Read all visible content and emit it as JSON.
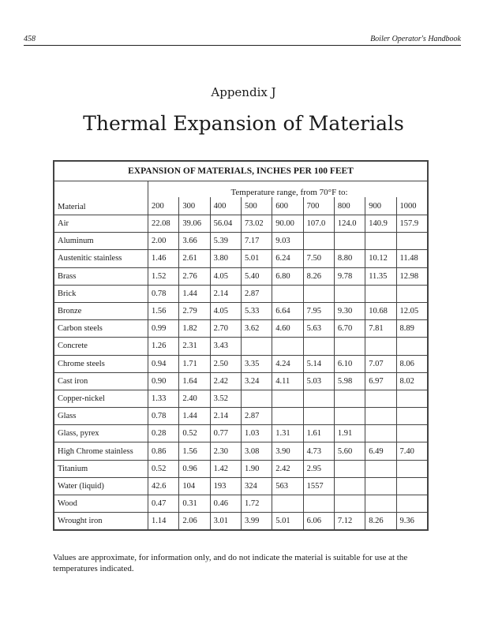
{
  "running_header": {
    "page_number": "458",
    "book_title": "Boiler Operator's Handbook"
  },
  "appendix": "Appendix J",
  "title": "Thermal Expansion of Materials",
  "table": {
    "caption": "EXPANSION OF MATERIALS, INCHES PER 100 FEET",
    "range_label": "Temperature range, from 70°F to:",
    "material_header": "Material",
    "temperatures": [
      "200",
      "300",
      "400",
      "500",
      "600",
      "700",
      "800",
      "900",
      "1000"
    ],
    "rows": [
      {
        "material": "Air",
        "values": [
          "22.08",
          "39.06",
          "56.04",
          "73.02",
          "90.00",
          "107.0",
          "124.0",
          "140.9",
          "157.9"
        ]
      },
      {
        "material": "Aluminum",
        "values": [
          "2.00",
          "3.66",
          "5.39",
          "7.17",
          "9.03",
          "",
          "",
          "",
          ""
        ]
      },
      {
        "material": "Austenitic stainless",
        "values": [
          "1.46",
          "2.61",
          "3.80",
          "5.01",
          "6.24",
          "7.50",
          "8.80",
          "10.12",
          "11.48"
        ]
      },
      {
        "material": "Brass",
        "values": [
          "1.52",
          "2.76",
          "4.05",
          "5.40",
          "6.80",
          "8.26",
          "9.78",
          "11.35",
          "12.98"
        ]
      },
      {
        "material": "Brick",
        "values": [
          "0.78",
          "1.44",
          "2.14",
          "2.87",
          "",
          "",
          "",
          "",
          ""
        ]
      },
      {
        "material": "Bronze",
        "values": [
          "1.56",
          "2.79",
          "4.05",
          "5.33",
          "6.64",
          "7.95",
          "9.30",
          "10.68",
          "12.05"
        ]
      },
      {
        "material": "Carbon steels",
        "values": [
          "0.99",
          "1.82",
          "2.70",
          "3.62",
          "4.60",
          "5.63",
          "6.70",
          "7.81",
          "8.89"
        ]
      },
      {
        "material": "Concrete",
        "values": [
          "1.26",
          "2.31",
          "3.43",
          "",
          "",
          "",
          "",
          "",
          ""
        ]
      },
      {
        "material": "Chrome steels",
        "values": [
          "0.94",
          "1.71",
          "2.50",
          "3.35",
          "4.24",
          "5.14",
          "6.10",
          "7.07",
          "8.06"
        ]
      },
      {
        "material": "Cast iron",
        "values": [
          "0.90",
          "1.64",
          "2.42",
          "3.24",
          "4.11",
          "5.03",
          "5.98",
          "6.97",
          "8.02"
        ]
      },
      {
        "material": "Copper-nickel",
        "values": [
          "1.33",
          "2.40",
          "3.52",
          "",
          "",
          "",
          "",
          "",
          ""
        ]
      },
      {
        "material": "Glass",
        "values": [
          "0.78",
          "1.44",
          "2.14",
          "2.87",
          "",
          "",
          "",
          "",
          ""
        ]
      },
      {
        "material": "Glass, pyrex",
        "values": [
          "0.28",
          "0.52",
          "0.77",
          "1.03",
          "1.31",
          "1.61",
          "1.91",
          "",
          ""
        ]
      },
      {
        "material": "High Chrome stainless",
        "values": [
          "0.86",
          "1.56",
          "2.30",
          "3.08",
          "3.90",
          "4.73",
          "5.60",
          "6.49",
          "7.40"
        ]
      },
      {
        "material": "Titanium",
        "values": [
          "0.52",
          "0.96",
          "1.42",
          "1.90",
          "2.42",
          "2.95",
          "",
          "",
          ""
        ]
      },
      {
        "material": "Water (liquid)",
        "values": [
          "42.6",
          "104",
          "193",
          "324",
          "563",
          "1557",
          "",
          "",
          ""
        ]
      },
      {
        "material": "Wood",
        "values": [
          "0.47",
          "0.31",
          "0.46",
          "1.72",
          "",
          "",
          "",
          "",
          ""
        ]
      },
      {
        "material": "Wrought iron",
        "values": [
          "1.14",
          "2.06",
          "3.01",
          "3.99",
          "5.01",
          "6.06",
          "7.12",
          "8.26",
          "9.36"
        ]
      }
    ]
  },
  "note": "Values are approximate, for information only, and do not indicate the material is suitable for use at the temperatures indicated."
}
